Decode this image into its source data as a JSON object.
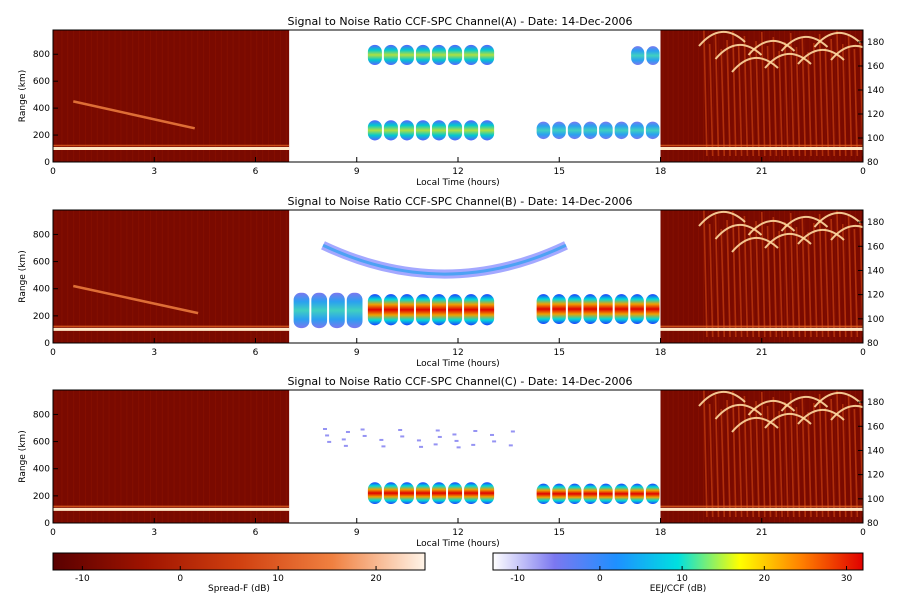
{
  "chart_data": [
    {
      "type": "heatmap",
      "title": "Signal to Noise Ratio CCF-SPC Channel(A) - Date: 14-Dec-2006",
      "xlabel": "Local Time (hours)",
      "ylabel": "Range (km)",
      "xlim": [
        0,
        24
      ],
      "ylim_left": [
        0,
        980
      ],
      "ylim_right": [
        80,
        190
      ],
      "x_ticks": [
        "0",
        "3",
        "6",
        "9",
        "12",
        "15",
        "18",
        "21",
        "0"
      ],
      "y_ticks_left": [
        "0",
        "200",
        "400",
        "600",
        "800"
      ],
      "y_ticks_right": [
        "80",
        "100",
        "120",
        "140",
        "160",
        "180"
      ],
      "segments": [
        {
          "x_range": [
            0,
            7
          ],
          "scale": "Spread-F",
          "features": [
            {
              "kind": "layer-trace",
              "x": [
                0,
                7
              ],
              "y": [
                100,
                100
              ],
              "level": "high"
            },
            {
              "kind": "echo-trace",
              "x": [
                0.6,
                4.2
              ],
              "y": [
                450,
                250
              ],
              "level": "medium"
            }
          ]
        },
        {
          "x_range": [
            7,
            18
          ],
          "scale": "EEJ/CCF",
          "features": [
            {
              "kind": "echo-block",
              "x": [
                9.3,
                13.1
              ],
              "y": [
                720,
                870
              ],
              "level": "medium"
            },
            {
              "kind": "echo-block",
              "x": [
                9.3,
                13.1
              ],
              "y": [
                160,
                310
              ],
              "level": "medium"
            },
            {
              "kind": "echo-block",
              "x": [
                14.3,
                18
              ],
              "y": [
                170,
                300
              ],
              "level": "low"
            },
            {
              "kind": "echo-block",
              "x": [
                17.1,
                18
              ],
              "y": [
                720,
                860
              ],
              "level": "low"
            }
          ]
        },
        {
          "x_range": [
            18,
            24
          ],
          "scale": "Spread-F",
          "features": [
            {
              "kind": "plume",
              "x": [
                19.2,
                24
              ],
              "y": [
                300,
                980
              ],
              "level": "high"
            },
            {
              "kind": "layer-trace",
              "x": [
                18,
                24
              ],
              "y": [
                100,
                100
              ],
              "level": "high"
            }
          ]
        }
      ]
    },
    {
      "type": "heatmap",
      "title": "Signal to Noise Ratio CCF-SPC Channel(B) - Date: 14-Dec-2006",
      "xlabel": "Local Time (hours)",
      "ylabel": "Range (km)",
      "xlim": [
        0,
        24
      ],
      "ylim_left": [
        0,
        980
      ],
      "ylim_right": [
        80,
        190
      ],
      "x_ticks": [
        "0",
        "3",
        "6",
        "9",
        "12",
        "15",
        "18",
        "21",
        "0"
      ],
      "y_ticks_left": [
        "0",
        "200",
        "400",
        "600",
        "800"
      ],
      "y_ticks_right": [
        "80",
        "100",
        "120",
        "140",
        "160",
        "180"
      ],
      "segments": [
        {
          "x_range": [
            0,
            7
          ],
          "scale": "Spread-F",
          "features": [
            {
              "kind": "layer-trace",
              "x": [
                0,
                7
              ],
              "y": [
                100,
                100
              ],
              "level": "high"
            },
            {
              "kind": "echo-trace",
              "x": [
                0.6,
                4.3
              ],
              "y": [
                420,
                220
              ],
              "level": "medium"
            }
          ]
        },
        {
          "x_range": [
            7,
            18
          ],
          "scale": "EEJ/CCF",
          "features": [
            {
              "kind": "echo-arc",
              "x": [
                8.0,
                15.2
              ],
              "y": [
                720,
                540
              ],
              "level": "low"
            },
            {
              "kind": "echo-block",
              "x": [
                7.1,
                9.2
              ],
              "y": [
                110,
                370
              ],
              "level": "low"
            },
            {
              "kind": "echo-block",
              "x": [
                9.3,
                13.1
              ],
              "y": [
                130,
                360
              ],
              "level": "high"
            },
            {
              "kind": "echo-block",
              "x": [
                14.3,
                18
              ],
              "y": [
                140,
                360
              ],
              "level": "high"
            }
          ]
        },
        {
          "x_range": [
            18,
            24
          ],
          "scale": "Spread-F",
          "features": [
            {
              "kind": "plume",
              "x": [
                19.2,
                24
              ],
              "y": [
                300,
                980
              ],
              "level": "high"
            },
            {
              "kind": "layer-trace",
              "x": [
                18,
                24
              ],
              "y": [
                100,
                100
              ],
              "level": "high"
            }
          ]
        }
      ]
    },
    {
      "type": "heatmap",
      "title": "Signal to Noise Ratio CCF-SPC Channel(C) - Date: 14-Dec-2006",
      "xlabel": "Local Time (hours)",
      "ylabel": "Range (km)",
      "xlim": [
        0,
        24
      ],
      "ylim_left": [
        0,
        980
      ],
      "ylim_right": [
        80,
        190
      ],
      "x_ticks": [
        "0",
        "3",
        "6",
        "9",
        "12",
        "15",
        "18",
        "21",
        "0"
      ],
      "y_ticks_left": [
        "0",
        "200",
        "400",
        "600",
        "800"
      ],
      "y_ticks_right": [
        "80",
        "100",
        "120",
        "140",
        "160",
        "180"
      ],
      "segments": [
        {
          "x_range": [
            0,
            7
          ],
          "scale": "Spread-F",
          "features": [
            {
              "kind": "layer-trace",
              "x": [
                0,
                7
              ],
              "y": [
                100,
                100
              ],
              "level": "high"
            }
          ]
        },
        {
          "x_range": [
            7,
            18
          ],
          "scale": "EEJ/CCF",
          "features": [
            {
              "kind": "echo-scatter",
              "x": [
                8.0,
                14.0
              ],
              "y": [
                550,
                700
              ],
              "level": "low"
            },
            {
              "kind": "echo-block",
              "x": [
                9.3,
                13.1
              ],
              "y": [
                140,
                300
              ],
              "level": "high"
            },
            {
              "kind": "echo-block",
              "x": [
                14.3,
                18
              ],
              "y": [
                140,
                290
              ],
              "level": "high"
            }
          ]
        },
        {
          "x_range": [
            18,
            24
          ],
          "scale": "Spread-F",
          "features": [
            {
              "kind": "plume",
              "x": [
                19.2,
                24
              ],
              "y": [
                150,
                980
              ],
              "level": "high"
            },
            {
              "kind": "layer-trace",
              "x": [
                18,
                24
              ],
              "y": [
                100,
                100
              ],
              "level": "high"
            }
          ]
        }
      ]
    }
  ],
  "colorbars": [
    {
      "label": "Spread-F (dB)",
      "range": [
        -13,
        25
      ],
      "ticks": [
        "-10",
        "0",
        "10",
        "20"
      ],
      "colors": [
        "#5a0000",
        "#a01400",
        "#d04010",
        "#f08040",
        "#fff4e8"
      ]
    },
    {
      "label": "EEJ/CCF (dB)",
      "range": [
        -13,
        32
      ],
      "ticks": [
        "-10",
        "0",
        "10",
        "20",
        "30"
      ],
      "colors": [
        "#ffffff",
        "#7b78f0",
        "#1e90ff",
        "#00e0e0",
        "#ffff00",
        "#ff8000",
        "#e00000"
      ]
    }
  ]
}
